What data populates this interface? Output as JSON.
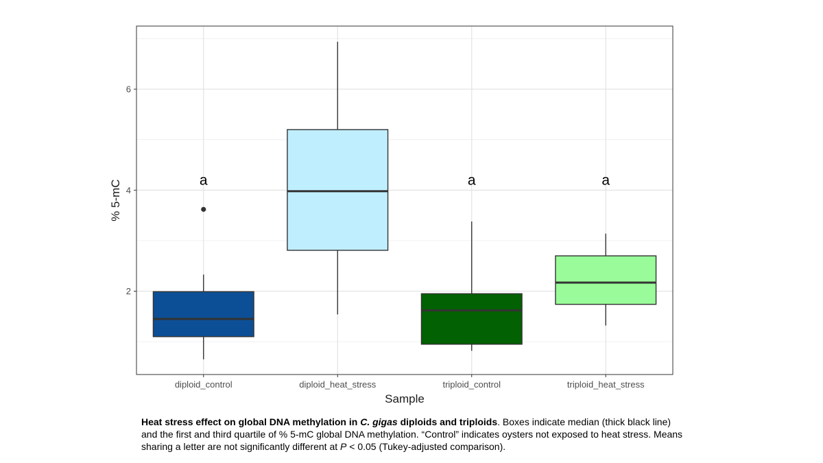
{
  "chart_data": {
    "type": "boxplot",
    "xlabel": "Sample",
    "ylabel": "% 5-mC",
    "ylim": [
      0.35,
      7.25
    ],
    "yticks": [
      2,
      4,
      6
    ],
    "grid": true,
    "categories": [
      "diploid_control",
      "diploid_heat_stress",
      "triploid_control",
      "triploid_heat_stress"
    ],
    "boxes": [
      {
        "name": "diploid_control",
        "whisker_low": 0.65,
        "q1": 1.1,
        "median": 1.45,
        "q3": 1.99,
        "whisker_high": 2.33,
        "outliers": [
          3.62
        ],
        "fill": "#0d4f96",
        "letter": "a"
      },
      {
        "name": "diploid_heat_stress",
        "whisker_low": 1.54,
        "q1": 2.81,
        "median": 3.98,
        "q3": 5.2,
        "whisker_high": 6.94,
        "outliers": [],
        "fill": "#bfeeff",
        "letter": ""
      },
      {
        "name": "triploid_control",
        "whisker_low": 0.82,
        "q1": 0.95,
        "median": 1.62,
        "q3": 1.95,
        "whisker_high": 3.38,
        "outliers": [],
        "fill": "#026102",
        "letter": "a"
      },
      {
        "name": "triploid_heat_stress",
        "whisker_low": 1.32,
        "q1": 1.74,
        "median": 2.17,
        "q3": 2.7,
        "whisker_high": 3.14,
        "outliers": [],
        "fill": "#99fb99",
        "letter": "a"
      }
    ]
  },
  "caption": {
    "bold_1": "Heat stress effect on global DNA methylation in ",
    "bold_italic": "C. gigas",
    "bold_2": " diploids and triploids",
    "text_1": ". Boxes indicate median (thick black line) and the first and third quartile of % 5-mC global DNA methylation. “Control” indicates oysters not exposed to heat stress. Means sharing a letter are not significantly different at ",
    "p_symbol": "P",
    "text_2": " < 0.05 (Tukey-adjusted comparison)."
  }
}
